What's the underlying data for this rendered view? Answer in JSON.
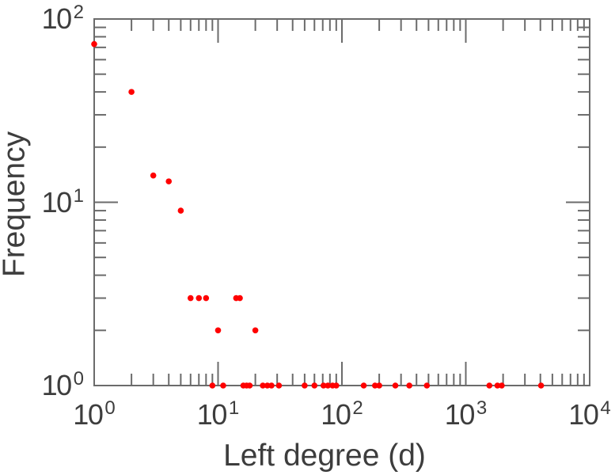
{
  "chart_data": {
    "type": "scatter",
    "title": "",
    "xlabel": "Left degree (d)",
    "ylabel": "Frequency",
    "x_scale": "log",
    "y_scale": "log",
    "xlim": [
      1,
      10000
    ],
    "ylim": [
      1,
      100
    ],
    "grid": false,
    "legend": null,
    "tick_label_base": "10",
    "x_tick_exponents": [
      0,
      1,
      2,
      3,
      4
    ],
    "y_tick_exponents": [
      0,
      1,
      2
    ],
    "frame": "box-with-inward-ticks",
    "marker": {
      "shape": "circle",
      "color": "#ff0000",
      "radius_px": 3.8
    },
    "axis_color": "#6b6b6b",
    "label_color": "#3d3d3d",
    "background_color": "#ffffff",
    "points": [
      [
        1,
        73
      ],
      [
        2,
        40
      ],
      [
        3,
        14
      ],
      [
        4,
        13
      ],
      [
        5,
        9
      ],
      [
        6,
        3
      ],
      [
        7,
        3
      ],
      [
        8,
        3
      ],
      [
        9,
        1
      ],
      [
        10,
        2
      ],
      [
        11,
        1
      ],
      [
        14,
        3
      ],
      [
        15,
        3
      ],
      [
        16,
        1
      ],
      [
        17,
        1
      ],
      [
        18,
        1
      ],
      [
        20,
        2
      ],
      [
        23,
        1
      ],
      [
        25,
        1
      ],
      [
        27,
        1
      ],
      [
        31,
        1
      ],
      [
        50,
        1
      ],
      [
        60,
        1
      ],
      [
        71,
        1
      ],
      [
        77,
        1
      ],
      [
        84,
        1
      ],
      [
        90,
        1
      ],
      [
        150,
        1
      ],
      [
        185,
        1
      ],
      [
        200,
        1
      ],
      [
        270,
        1
      ],
      [
        350,
        1
      ],
      [
        485,
        1
      ],
      [
        1550,
        1
      ],
      [
        1800,
        1
      ],
      [
        1950,
        1
      ],
      [
        4050,
        1
      ]
    ]
  }
}
